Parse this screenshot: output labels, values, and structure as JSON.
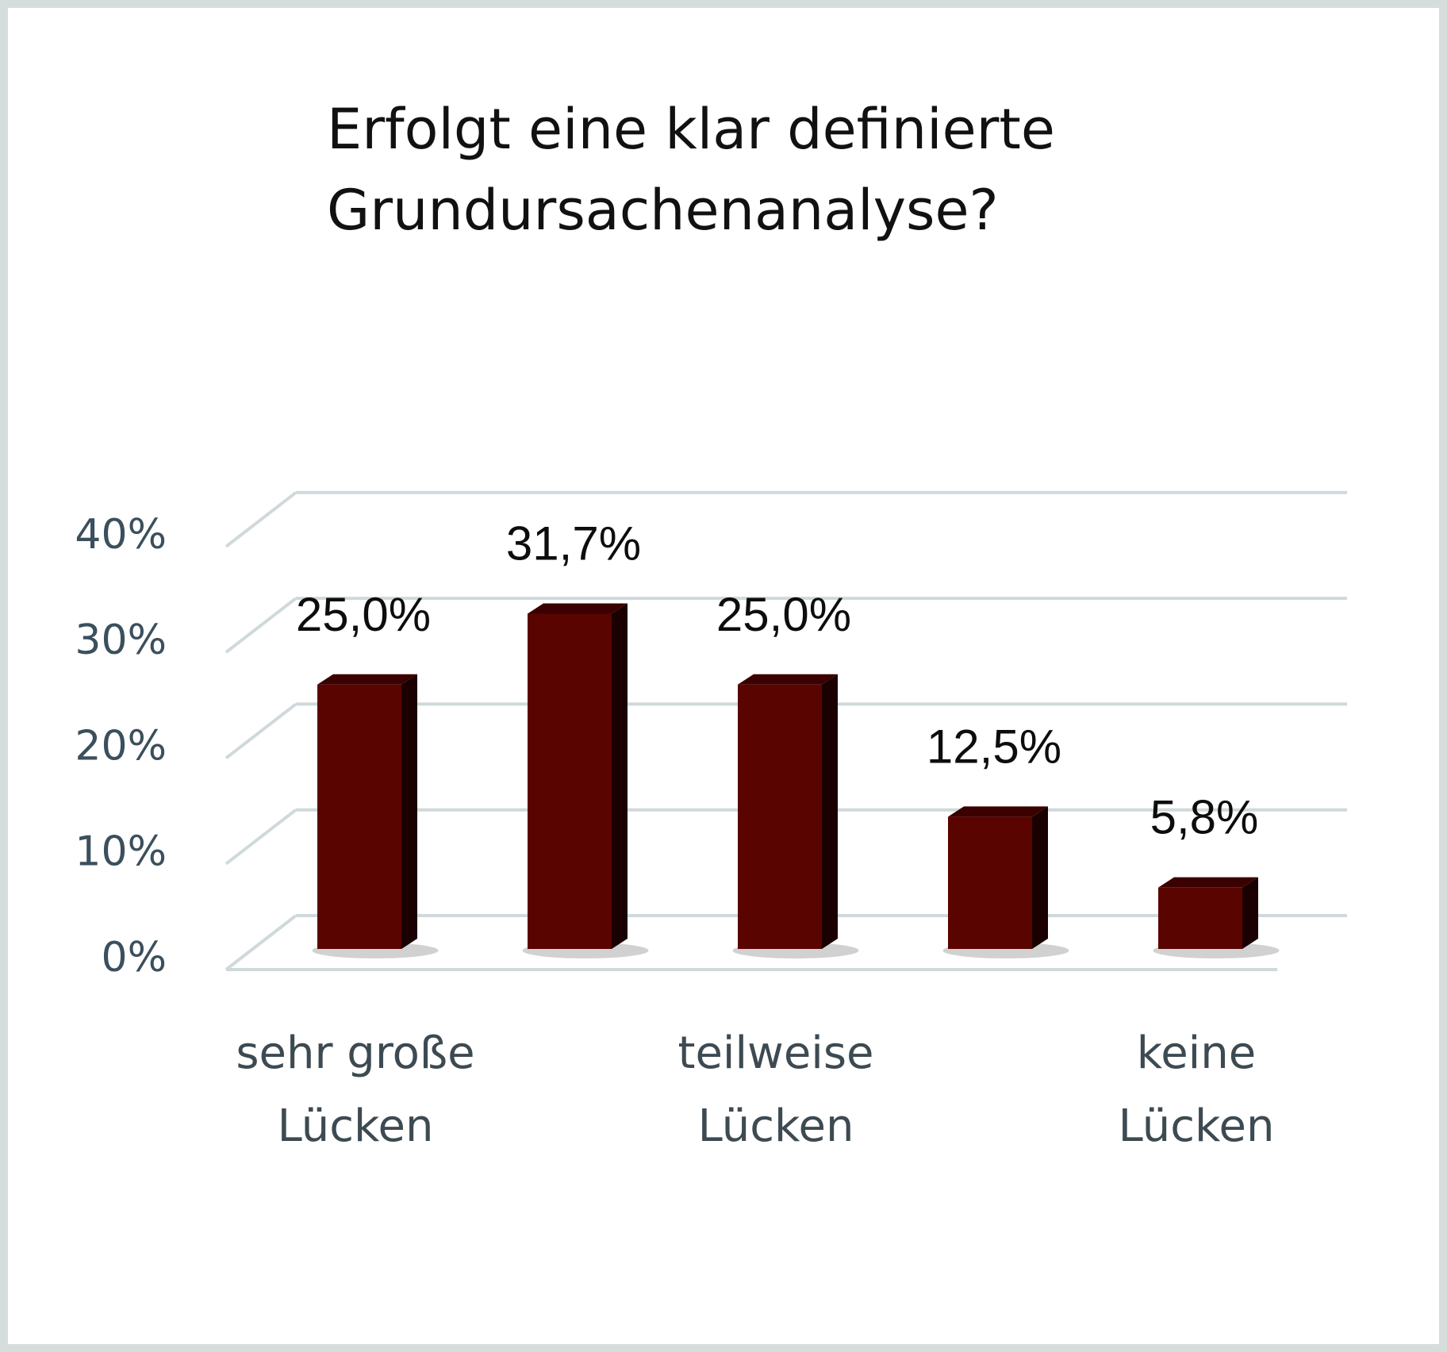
{
  "chart_data": {
    "type": "bar",
    "title": "Erfolgt eine klar definierte Grundursachenanalyse?",
    "title_lines": [
      "Erfolgt eine klar definierte",
      "Grundursachenanalyse?"
    ],
    "categories": [
      [
        "sehr große",
        "Lücken"
      ],
      [
        "",
        ""
      ],
      [
        "teilweise",
        "Lücken"
      ],
      [
        "",
        ""
      ],
      [
        "keine",
        "Lücken"
      ]
    ],
    "values": [
      25.0,
      31.7,
      25.0,
      12.5,
      5.8
    ],
    "value_labels": [
      "25,0%",
      "31,7%",
      "25,0%",
      "12,5%",
      "5,8%"
    ],
    "y_ticks": [
      0,
      10,
      20,
      30,
      40
    ],
    "y_tick_labels": [
      "0%",
      "10%",
      "20%",
      "30%",
      "40%"
    ],
    "ylim": [
      0,
      40
    ],
    "xlabel": "",
    "ylabel": "",
    "grid": true,
    "style": "3d-column",
    "colors": {
      "bar_front": "#5a0400",
      "bar_side": "#1a0000",
      "bar_top": "#3a0100",
      "grid": "#cfd9dc",
      "tick_text": "#3b4f5c"
    }
  }
}
